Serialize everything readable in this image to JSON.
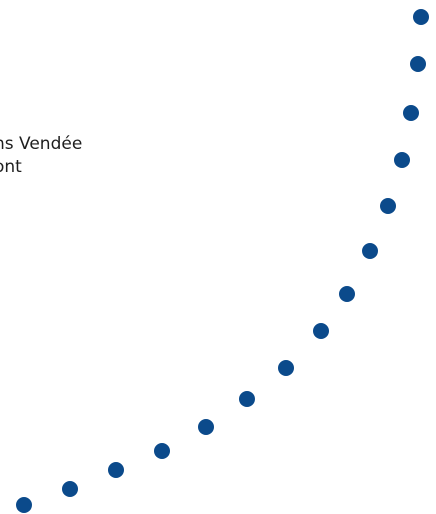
{
  "text": {
    "line1": "ns Vendée",
    "line2": "ont"
  },
  "colors": {
    "dot": "#0b4a8b",
    "text": "#1e1e1e",
    "background": "#ffffff"
  }
}
